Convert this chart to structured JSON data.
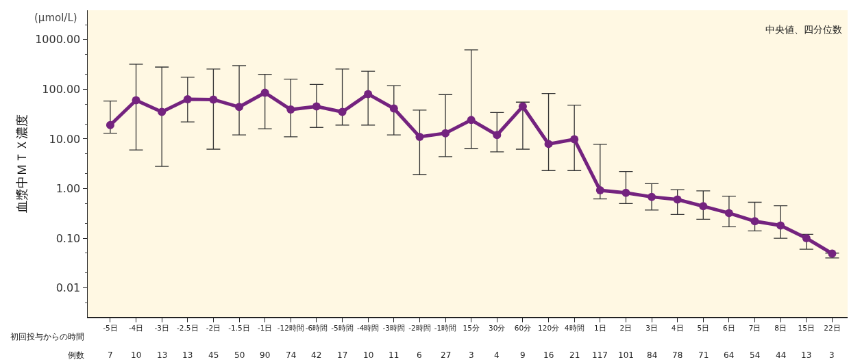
{
  "chart_data": {
    "type": "line",
    "ylabel": "血漿中ＭＴＸ濃度",
    "xlabel": "初回投与からの時間",
    "categories": [
      "-5日",
      "-4日",
      "-3日",
      "-2.5日",
      "-2日",
      "-1.5日",
      "-1日",
      "-12時間",
      "-6時間",
      "-5時間",
      "-4時間",
      "-3時間",
      "-2時間",
      "-1時間",
      "15分",
      "30分",
      "60分",
      "120分",
      "4時間",
      "1日",
      "2日",
      "3日",
      "4日",
      "5日",
      "6日",
      "7日",
      "8日",
      "15日",
      "22日"
    ],
    "series": [
      {
        "color": "#74237f",
        "values": [
          19,
          60,
          35,
          63,
          62,
          44,
          85,
          39,
          45,
          35,
          80,
          41,
          11,
          13,
          24,
          12,
          45,
          7.9,
          9.8,
          0.92,
          0.82,
          0.68,
          0.6,
          0.44,
          0.32,
          0.22,
          0.18,
          0.1,
          0.049
        ],
        "errors": [
          [
            13,
            58
          ],
          [
            6,
            320
          ],
          [
            2.8,
            280
          ],
          [
            22,
            175
          ],
          [
            6.2,
            255
          ],
          [
            12,
            300
          ],
          [
            16,
            200
          ],
          [
            11,
            160
          ],
          [
            17,
            125
          ],
          [
            19,
            255
          ],
          [
            19,
            230
          ],
          [
            12,
            118
          ],
          [
            1.9,
            38
          ],
          [
            4.4,
            78
          ],
          [
            6.4,
            620
          ],
          [
            5.5,
            34
          ],
          [
            6.2,
            55
          ],
          [
            2.3,
            82
          ],
          [
            2.3,
            48
          ],
          [
            0.62,
            7.8
          ],
          [
            0.5,
            2.2
          ],
          [
            0.37,
            1.25
          ],
          [
            0.3,
            0.95
          ],
          [
            0.24,
            0.9
          ],
          [
            0.17,
            0.7
          ],
          [
            0.14,
            0.53
          ],
          [
            0.1,
            0.45
          ],
          [
            0.06,
            0.12
          ],
          [
            0.04,
            0.05
          ]
        ]
      }
    ],
    "log": "y",
    "ylim": [
      0.0026,
      3900
    ],
    "yticks": [
      {
        "value": 0.01,
        "label": "0.01"
      },
      {
        "value": 0.1,
        "label": "0.10"
      },
      {
        "value": 1,
        "label": "1.00"
      },
      {
        "value": 10,
        "label": "10.00"
      },
      {
        "value": 100,
        "label": "100.00"
      },
      {
        "value": 1000,
        "label": "1000.00"
      }
    ],
    "grid": false,
    "marker": "circle",
    "line_style": "solid",
    "annotations": [
      "(μmol/L)",
      "中央値、四分位数",
      "例数",
      "7",
      "10",
      "13",
      "13",
      "45",
      "50",
      "90",
      "74",
      "42",
      "17",
      "10",
      "11",
      "6",
      "27",
      "3",
      "4",
      "9",
      "16",
      "21",
      "117",
      "101",
      "84",
      "78",
      "71",
      "64",
      "54",
      "44",
      "13",
      "3"
    ]
  }
}
